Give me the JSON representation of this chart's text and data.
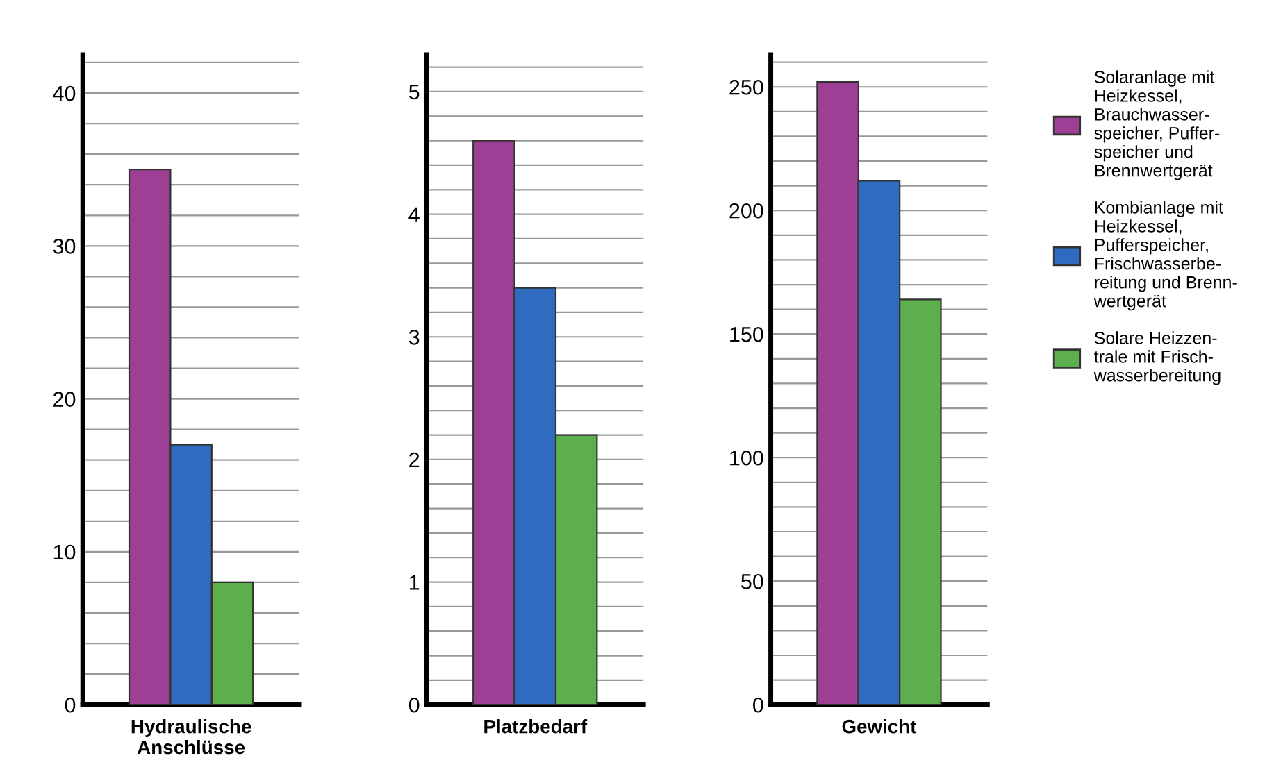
{
  "chart_data": [
    {
      "type": "bar",
      "xlabel": "Hydraulische\nAnschlüsse",
      "categories": [
        null
      ],
      "ylim": [
        0,
        42.5
      ],
      "grid": "y",
      "legend": "right",
      "yticks": [
        0,
        {
          "value": 2,
          "label": null
        },
        {
          "value": 4,
          "label": null
        },
        {
          "value": 6,
          "label": null
        },
        {
          "value": 8,
          "label": null
        },
        10,
        {
          "value": 12,
          "label": null
        },
        {
          "value": 14,
          "label": null
        },
        {
          "value": 16,
          "label": null
        },
        {
          "value": 18,
          "label": null
        },
        20,
        {
          "value": 22,
          "label": null
        },
        {
          "value": 24,
          "label": null
        },
        {
          "value": 26,
          "label": null
        },
        {
          "value": 28,
          "label": null
        },
        30,
        {
          "value": 32,
          "label": null
        },
        {
          "value": 34,
          "label": null
        },
        {
          "value": 36,
          "label": null
        },
        {
          "value": 38,
          "label": null
        },
        40,
        {
          "value": 42,
          "label": null
        }
      ],
      "series": [
        {
          "name": "Solaranlage mit\nHeizkessel,\nBrauchwasser-\nspeicher, Puffer-\nspeicher und\nBrennwertgerät",
          "color": "#9c3f95",
          "values": [
            35
          ]
        },
        {
          "name": "Kombianlage mit\nHeizkessel,\nPufferspeicher,\nFrischwasserbe-\nreitung und Brenn-\nwertgerät",
          "color": "#2f6cc0",
          "values": [
            17
          ]
        },
        {
          "name": "Solare Heizzen-\ntrale mit Frisch-\nwasserbereitung",
          "color": "#5caf4c",
          "values": [
            8
          ]
        }
      ]
    },
    {
      "type": "bar",
      "xlabel": "Platzbedarf",
      "categories": [
        null
      ],
      "ylim": [
        0,
        5.3
      ],
      "grid": "y",
      "yticks": [
        0,
        {
          "value": 0.2,
          "label": null
        },
        {
          "value": 0.4,
          "label": null
        },
        {
          "value": 0.6,
          "label": null
        },
        {
          "value": 0.8,
          "label": null
        },
        1,
        {
          "value": 1.2,
          "label": null
        },
        {
          "value": 1.4,
          "label": null
        },
        {
          "value": 1.6,
          "label": null
        },
        {
          "value": 1.8,
          "label": null
        },
        2,
        {
          "value": 2.2,
          "label": null
        },
        {
          "value": 2.4,
          "label": null
        },
        {
          "value": 2.6,
          "label": null
        },
        {
          "value": 2.8,
          "label": null
        },
        3,
        {
          "value": 3.2,
          "label": null
        },
        {
          "value": 3.4,
          "label": null
        },
        {
          "value": 3.6,
          "label": null
        },
        {
          "value": 3.8,
          "label": null
        },
        4,
        {
          "value": 4.2,
          "label": null
        },
        {
          "value": 4.4,
          "label": null
        },
        {
          "value": 4.6,
          "label": null
        },
        {
          "value": 4.8,
          "label": null
        },
        5,
        {
          "value": 5.2,
          "label": null
        }
      ],
      "series": [
        {
          "color": "#9c3f95",
          "values": [
            4.6
          ]
        },
        {
          "color": "#2f6cc0",
          "values": [
            3.4
          ]
        },
        {
          "color": "#5caf4c",
          "values": [
            2.2
          ]
        }
      ]
    },
    {
      "type": "bar",
      "xlabel": "Gewicht",
      "categories": [
        null
      ],
      "ylim": [
        0,
        263
      ],
      "grid": "y",
      "yticks": [
        0,
        {
          "value": 10,
          "label": null
        },
        {
          "value": 20,
          "label": null
        },
        {
          "value": 30,
          "label": null
        },
        {
          "value": 40,
          "label": null
        },
        50,
        {
          "value": 60,
          "label": null
        },
        {
          "value": 70,
          "label": null
        },
        {
          "value": 80,
          "label": null
        },
        {
          "value": 90,
          "label": null
        },
        100,
        {
          "value": 110,
          "label": null
        },
        {
          "value": 120,
          "label": null
        },
        {
          "value": 130,
          "label": null
        },
        {
          "value": 140,
          "label": null
        },
        150,
        {
          "value": 160,
          "label": null
        },
        {
          "value": 170,
          "label": null
        },
        {
          "value": 180,
          "label": null
        },
        {
          "value": 190,
          "label": null
        },
        200,
        {
          "value": 210,
          "label": null
        },
        {
          "value": 220,
          "label": null
        },
        {
          "value": 230,
          "label": null
        },
        {
          "value": 240,
          "label": null
        },
        250,
        {
          "value": 260,
          "label": null
        }
      ],
      "series": [
        {
          "color": "#9c3f95",
          "values": [
            252
          ]
        },
        {
          "color": "#2f6cc0",
          "values": [
            212
          ]
        },
        {
          "color": "#5caf4c",
          "values": [
            164
          ]
        }
      ]
    }
  ]
}
